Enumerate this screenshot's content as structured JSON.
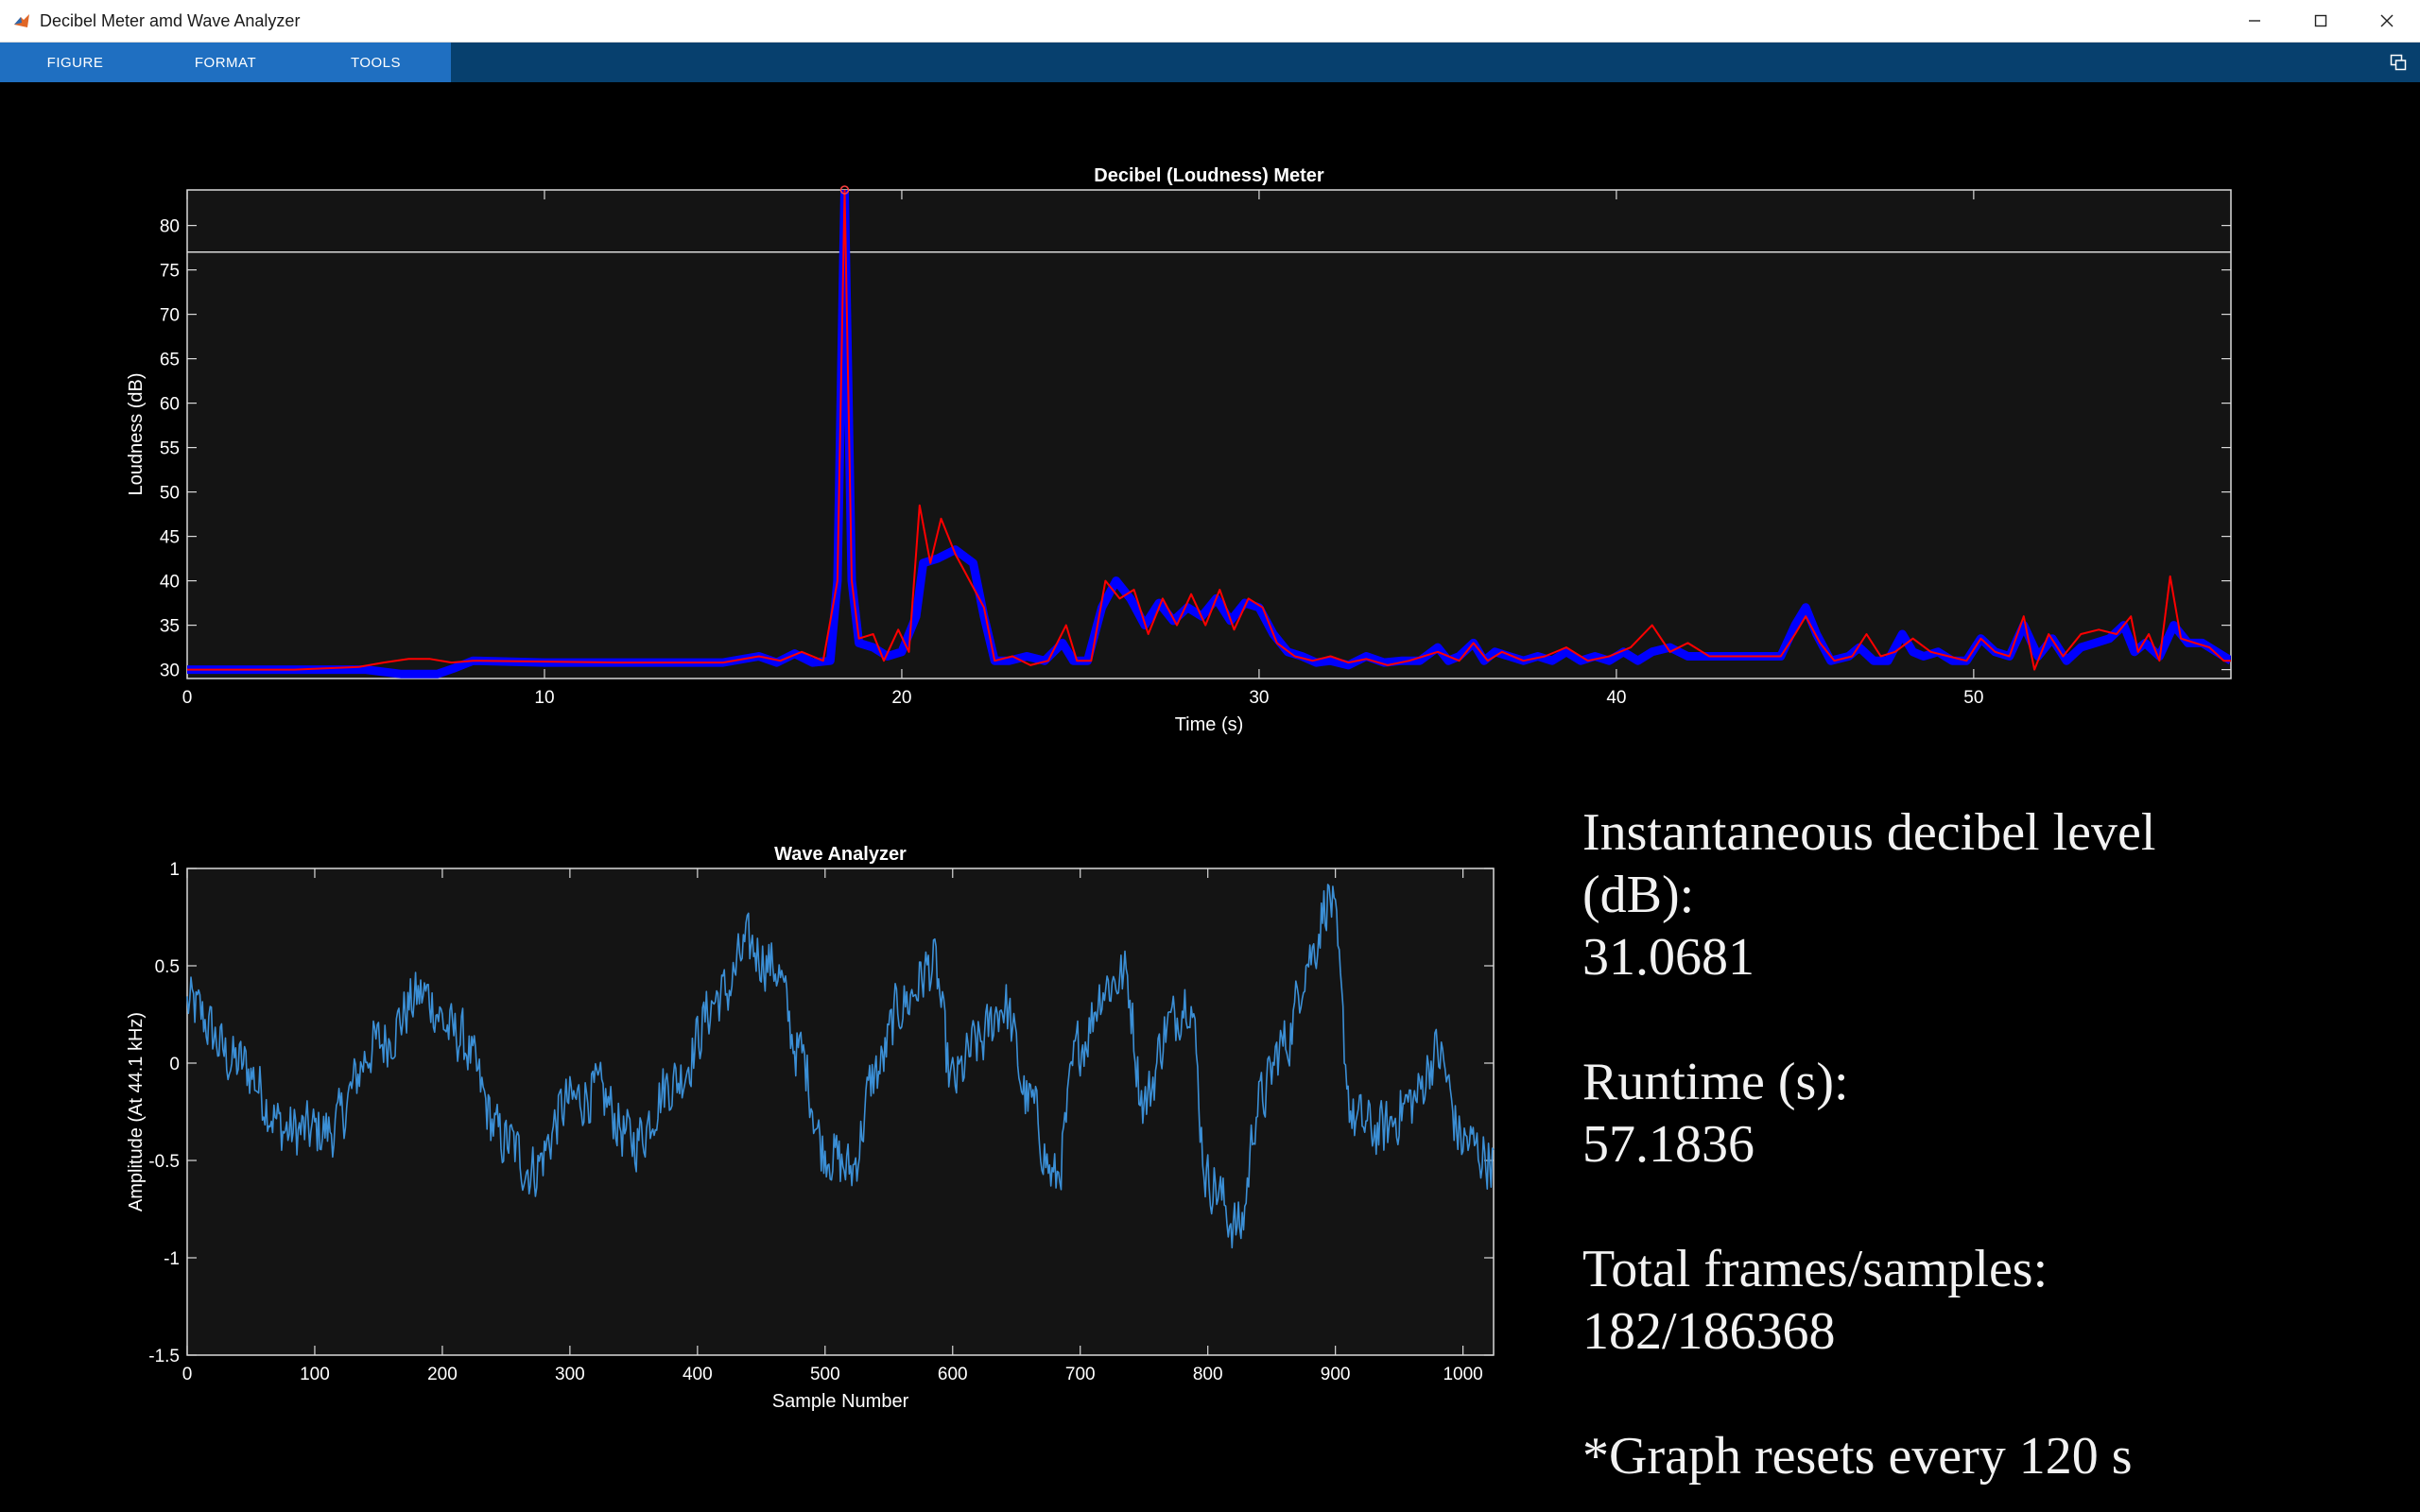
{
  "window": {
    "title": "Decibel Meter amd Wave Analyzer",
    "icon": "matlab-icon",
    "controls": [
      "minimize-icon",
      "maximize-icon",
      "close-icon"
    ]
  },
  "toolstrip": {
    "tabs": [
      "FIGURE",
      "FORMAT",
      "TOOLS"
    ],
    "undock_icon": "undock-icon"
  },
  "colors": {
    "background": "#000000",
    "axes_background": "#141414",
    "tab_active": "#1f6fc1",
    "toolstrip": "#07406e",
    "db_mean_line": "#0000ff",
    "db_instant_line": "#ff0000",
    "wave_line": "#3b8fd6"
  },
  "chart_data": [
    {
      "type": "line",
      "title": "Decibel (Loudness) Meter",
      "xlabel": "Time (s)",
      "ylabel": "Loudness (dB)",
      "xlim": [
        0,
        57.2
      ],
      "ylim": [
        29,
        84
      ],
      "xticks": [
        0,
        10,
        20,
        30,
        40,
        50
      ],
      "yticks": [
        30,
        35,
        40,
        45,
        50,
        55,
        60,
        65,
        70,
        75,
        80
      ],
      "threshold_line": 77,
      "peak_marker": {
        "x": 18.4,
        "y": 84
      },
      "grid": false,
      "series": [
        {
          "role": "smoothed",
          "points": [
            [
              0,
              30
            ],
            [
              2,
              30
            ],
            [
              4,
              30
            ],
            [
              5,
              30
            ],
            [
              6,
              29.5
            ],
            [
              7,
              29.5
            ],
            [
              7.5,
              30.2
            ],
            [
              8,
              31
            ],
            [
              10,
              30.8
            ],
            [
              12,
              30.8
            ],
            [
              14,
              30.8
            ],
            [
              15,
              30.8
            ],
            [
              16,
              31.5
            ],
            [
              16.5,
              30.8
            ],
            [
              17,
              31.8
            ],
            [
              17.5,
              30.8
            ],
            [
              18,
              31
            ],
            [
              18.2,
              40
            ],
            [
              18.4,
              84
            ],
            [
              18.6,
              40
            ],
            [
              18.8,
              33
            ],
            [
              19.2,
              32.5
            ],
            [
              19.6,
              31.5
            ],
            [
              20,
              32
            ],
            [
              20.4,
              36
            ],
            [
              20.6,
              42
            ],
            [
              21,
              42.5
            ],
            [
              21.5,
              43.5
            ],
            [
              22,
              42
            ],
            [
              22.3,
              36
            ],
            [
              22.6,
              31
            ],
            [
              23,
              31
            ],
            [
              23.5,
              31.5
            ],
            [
              24,
              31
            ],
            [
              24.5,
              33
            ],
            [
              24.8,
              31
            ],
            [
              25.2,
              31
            ],
            [
              25.6,
              37
            ],
            [
              26,
              40
            ],
            [
              26.4,
              38
            ],
            [
              26.8,
              35
            ],
            [
              27.2,
              37.5
            ],
            [
              27.6,
              35.5
            ],
            [
              28,
              37
            ],
            [
              28.4,
              36
            ],
            [
              28.8,
              38
            ],
            [
              29.2,
              35.5
            ],
            [
              29.6,
              37.5
            ],
            [
              30,
              37
            ],
            [
              30.4,
              34
            ],
            [
              30.8,
              32
            ],
            [
              31.2,
              31.5
            ],
            [
              31.6,
              30.8
            ],
            [
              32,
              31
            ],
            [
              32.5,
              30.5
            ],
            [
              33,
              31.5
            ],
            [
              33.5,
              30.8
            ],
            [
              34,
              31
            ],
            [
              34.5,
              31
            ],
            [
              35,
              32.5
            ],
            [
              35.3,
              31
            ],
            [
              35.6,
              31.5
            ],
            [
              36,
              33
            ],
            [
              36.3,
              31
            ],
            [
              36.6,
              32
            ],
            [
              37,
              31.5
            ],
            [
              37.4,
              31
            ],
            [
              37.8,
              31.5
            ],
            [
              38.2,
              31
            ],
            [
              38.6,
              32
            ],
            [
              39,
              31
            ],
            [
              39.4,
              31.5
            ],
            [
              39.8,
              31
            ],
            [
              40.2,
              32
            ],
            [
              40.6,
              31
            ],
            [
              41,
              32
            ],
            [
              41.5,
              32.5
            ],
            [
              42,
              31.5
            ],
            [
              43,
              31.5
            ],
            [
              44,
              31.5
            ],
            [
              44.6,
              31.5
            ],
            [
              45,
              35
            ],
            [
              45.3,
              37
            ],
            [
              45.6,
              34
            ],
            [
              46,
              31
            ],
            [
              46.5,
              31.5
            ],
            [
              46.8,
              32.5
            ],
            [
              47.2,
              31
            ],
            [
              47.6,
              31
            ],
            [
              48,
              34
            ],
            [
              48.3,
              32
            ],
            [
              48.6,
              31.5
            ],
            [
              49,
              32
            ],
            [
              49.4,
              31
            ],
            [
              49.8,
              31
            ],
            [
              50.2,
              33.5
            ],
            [
              50.6,
              32
            ],
            [
              51,
              31.5
            ],
            [
              51.4,
              35
            ],
            [
              51.8,
              31.5
            ],
            [
              52.2,
              33.5
            ],
            [
              52.6,
              31
            ],
            [
              53,
              32.5
            ],
            [
              53.4,
              33
            ],
            [
              53.8,
              33.5
            ],
            [
              54.2,
              35
            ],
            [
              54.5,
              32
            ],
            [
              54.8,
              33
            ],
            [
              55.2,
              31.5
            ],
            [
              55.6,
              35
            ],
            [
              56,
              33
            ],
            [
              56.4,
              33
            ],
            [
              56.8,
              32
            ],
            [
              57.2,
              31
            ]
          ]
        },
        {
          "role": "instantaneous",
          "points": [
            [
              0,
              30
            ],
            [
              3,
              30
            ],
            [
              4.8,
              30.3
            ],
            [
              5.5,
              30.8
            ],
            [
              6.2,
              31.2
            ],
            [
              6.8,
              31.2
            ],
            [
              7.4,
              30.8
            ],
            [
              8,
              31
            ],
            [
              12,
              30.8
            ],
            [
              15,
              30.8
            ],
            [
              16,
              31.5
            ],
            [
              16.6,
              31
            ],
            [
              17.2,
              32
            ],
            [
              17.8,
              31
            ],
            [
              18.2,
              40
            ],
            [
              18.4,
              84
            ],
            [
              18.6,
              40
            ],
            [
              18.8,
              33.5
            ],
            [
              19.2,
              34
            ],
            [
              19.5,
              31
            ],
            [
              19.9,
              34.5
            ],
            [
              20.2,
              32
            ],
            [
              20.5,
              48.5
            ],
            [
              20.8,
              42
            ],
            [
              21.1,
              47
            ],
            [
              21.5,
              43
            ],
            [
              21.9,
              40
            ],
            [
              22.3,
              37
            ],
            [
              22.6,
              31
            ],
            [
              23.1,
              31.5
            ],
            [
              23.6,
              30.5
            ],
            [
              24.1,
              31
            ],
            [
              24.6,
              35
            ],
            [
              24.9,
              31
            ],
            [
              25.3,
              31
            ],
            [
              25.7,
              40
            ],
            [
              26.1,
              38
            ],
            [
              26.5,
              39
            ],
            [
              26.9,
              34
            ],
            [
              27.3,
              38
            ],
            [
              27.7,
              35
            ],
            [
              28.1,
              38.5
            ],
            [
              28.5,
              35
            ],
            [
              28.9,
              39
            ],
            [
              29.3,
              34.5
            ],
            [
              29.7,
              38
            ],
            [
              30.1,
              37
            ],
            [
              30.5,
              33
            ],
            [
              31,
              31.5
            ],
            [
              31.5,
              31
            ],
            [
              32,
              31.5
            ],
            [
              32.5,
              30.8
            ],
            [
              33,
              31.2
            ],
            [
              33.6,
              30.5
            ],
            [
              34.2,
              31
            ],
            [
              35,
              32
            ],
            [
              35.6,
              31
            ],
            [
              36,
              33
            ],
            [
              36.4,
              31
            ],
            [
              36.8,
              32
            ],
            [
              37.4,
              31
            ],
            [
              38,
              31.5
            ],
            [
              38.6,
              32.5
            ],
            [
              39.2,
              31
            ],
            [
              39.8,
              31.5
            ],
            [
              40.4,
              32.5
            ],
            [
              41,
              35
            ],
            [
              41.5,
              32
            ],
            [
              42,
              33
            ],
            [
              42.6,
              31.5
            ],
            [
              43.2,
              31.5
            ],
            [
              44,
              31.5
            ],
            [
              44.6,
              31.5
            ],
            [
              45,
              34
            ],
            [
              45.3,
              36
            ],
            [
              45.7,
              33
            ],
            [
              46.1,
              31
            ],
            [
              46.6,
              31.5
            ],
            [
              47,
              34
            ],
            [
              47.4,
              31.5
            ],
            [
              47.8,
              32
            ],
            [
              48.3,
              33.5
            ],
            [
              48.8,
              32
            ],
            [
              49.3,
              31.5
            ],
            [
              49.8,
              31
            ],
            [
              50.2,
              33.5
            ],
            [
              50.6,
              32
            ],
            [
              51,
              31.5
            ],
            [
              51.4,
              36
            ],
            [
              51.7,
              30
            ],
            [
              52.1,
              34
            ],
            [
              52.5,
              31.5
            ],
            [
              53,
              34
            ],
            [
              53.5,
              34.5
            ],
            [
              54,
              34
            ],
            [
              54.4,
              36
            ],
            [
              54.6,
              32
            ],
            [
              54.9,
              34
            ],
            [
              55.2,
              31
            ],
            [
              55.5,
              40.5
            ],
            [
              55.8,
              33.5
            ],
            [
              56.2,
              33
            ],
            [
              56.6,
              32.5
            ],
            [
              57,
              31
            ],
            [
              57.2,
              31
            ]
          ]
        }
      ]
    },
    {
      "type": "line",
      "title": "Wave Analyzer",
      "xlabel": "Sample Number",
      "ylabel": "Amplitude (At 44.1 kHz)",
      "xlim": [
        0,
        1024
      ],
      "ylim": [
        -1.5,
        1
      ],
      "xticks": [
        0,
        100,
        200,
        300,
        400,
        500,
        600,
        700,
        800,
        900,
        1000
      ],
      "yticks": [
        1,
        0.5,
        0,
        -0.5,
        -1,
        -1.5
      ],
      "ytick_labels": [
        "1",
        "0.5",
        "0",
        "-0.5",
        "-1",
        "-1.5"
      ],
      "grid": false,
      "envelope_knots": [
        [
          0,
          0.3
        ],
        [
          40,
          0
        ],
        [
          80,
          -0.35
        ],
        [
          110,
          -0.35
        ],
        [
          150,
          0.1
        ],
        [
          185,
          0.35
        ],
        [
          210,
          0.15
        ],
        [
          250,
          -0.4
        ],
        [
          270,
          -0.55
        ],
        [
          300,
          -0.2
        ],
        [
          320,
          -0.15
        ],
        [
          350,
          -0.4
        ],
        [
          380,
          -0.1
        ],
        [
          420,
          0.35
        ],
        [
          440,
          0.6
        ],
        [
          460,
          0.5
        ],
        [
          480,
          0.05
        ],
        [
          500,
          -0.45
        ],
        [
          520,
          -0.55
        ],
        [
          540,
          -0.05
        ],
        [
          560,
          0.3
        ],
        [
          585,
          0.5
        ],
        [
          600,
          -0.1
        ],
        [
          620,
          0.1
        ],
        [
          640,
          0.3
        ],
        [
          660,
          -0.2
        ],
        [
          680,
          -0.6
        ],
        [
          700,
          0.1
        ],
        [
          720,
          0.4
        ],
        [
          735,
          0.45
        ],
        [
          750,
          -0.2
        ],
        [
          770,
          0.2
        ],
        [
          785,
          0.35
        ],
        [
          800,
          -0.6
        ],
        [
          825,
          -0.85
        ],
        [
          840,
          -0.2
        ],
        [
          860,
          0.1
        ],
        [
          880,
          0.55
        ],
        [
          895,
          0.85
        ],
        [
          915,
          -0.3
        ],
        [
          935,
          -0.35
        ],
        [
          960,
          -0.2
        ],
        [
          980,
          0.05
        ],
        [
          1000,
          -0.4
        ],
        [
          1024,
          -0.5
        ]
      ],
      "noise_amplitude": 0.14
    }
  ],
  "info": {
    "db_label_line1": "Instantaneous decibel level",
    "db_label_line2": "(dB):",
    "db_value": "31.0681",
    "runtime_label": "Runtime (s):",
    "runtime_value": "57.1836",
    "frames_label": "Total frames/samples:",
    "frames_value": "182/186368",
    "note": "*Graph resets every 120 s"
  }
}
